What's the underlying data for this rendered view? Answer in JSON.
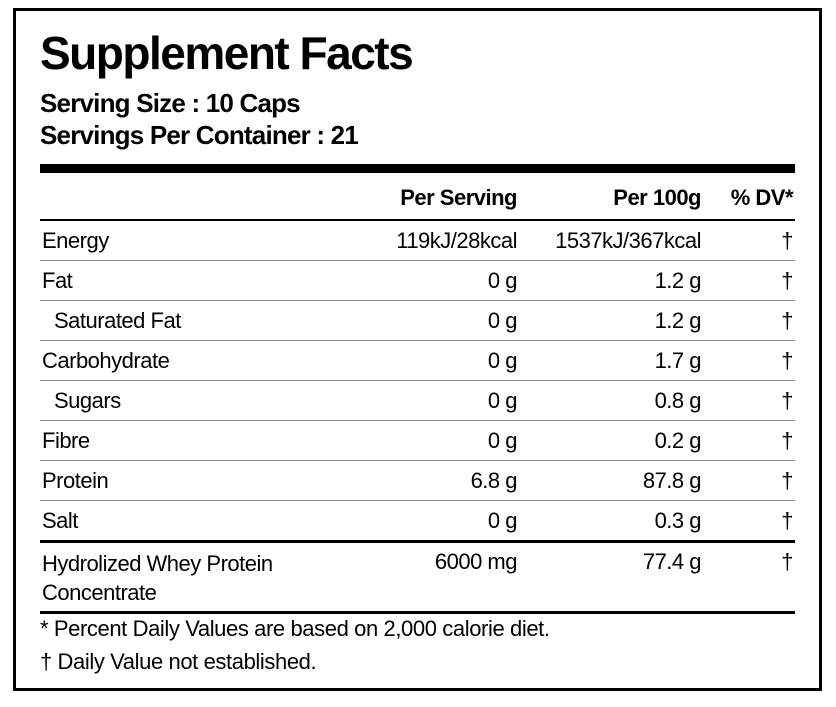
{
  "title": "Supplement Facts",
  "serving_size": "Serving Size : 10 Caps",
  "servings_per_container": "Servings Per Container : 21",
  "table": {
    "headers": {
      "per_serving": "Per Serving",
      "per_100g": "Per 100g",
      "dv": "% DV*"
    },
    "rows": [
      {
        "name": "Energy",
        "per_serving": "119kJ/28kcal",
        "per_100g": "1537kJ/367kcal",
        "dv": "†"
      },
      {
        "name": "Fat",
        "per_serving": "0 g",
        "per_100g": "1.2 g",
        "dv": "†",
        "subrows": [
          {
            "name": "Saturated Fat",
            "per_serving": "0 g",
            "per_100g": "1.2 g",
            "dv": "†"
          }
        ]
      },
      {
        "name": "Carbohydrate",
        "per_serving": "0 g",
        "per_100g": "1.7 g",
        "dv": "†",
        "subrows": [
          {
            "name": "Sugars",
            "per_serving": "0 g",
            "per_100g": "0.8 g",
            "dv": "†"
          }
        ]
      },
      {
        "name": "Fibre",
        "per_serving": "0 g",
        "per_100g": "0.2 g",
        "dv": "†"
      },
      {
        "name": "Protein",
        "per_serving": "6.8 g",
        "per_100g": "87.8 g",
        "dv": "†"
      },
      {
        "name": "Salt",
        "per_serving": "0 g",
        "per_100g": "0.3 g",
        "dv": "†"
      },
      {
        "name": "Hydrolized Whey Protein Concentrate",
        "per_serving": "6000 mg",
        "per_100g": "77.4 g",
        "dv": "†"
      }
    ]
  },
  "footnotes": [
    "* Percent Daily Values are based on 2,000 calorie diet.",
    "† Daily Value not established."
  ]
}
